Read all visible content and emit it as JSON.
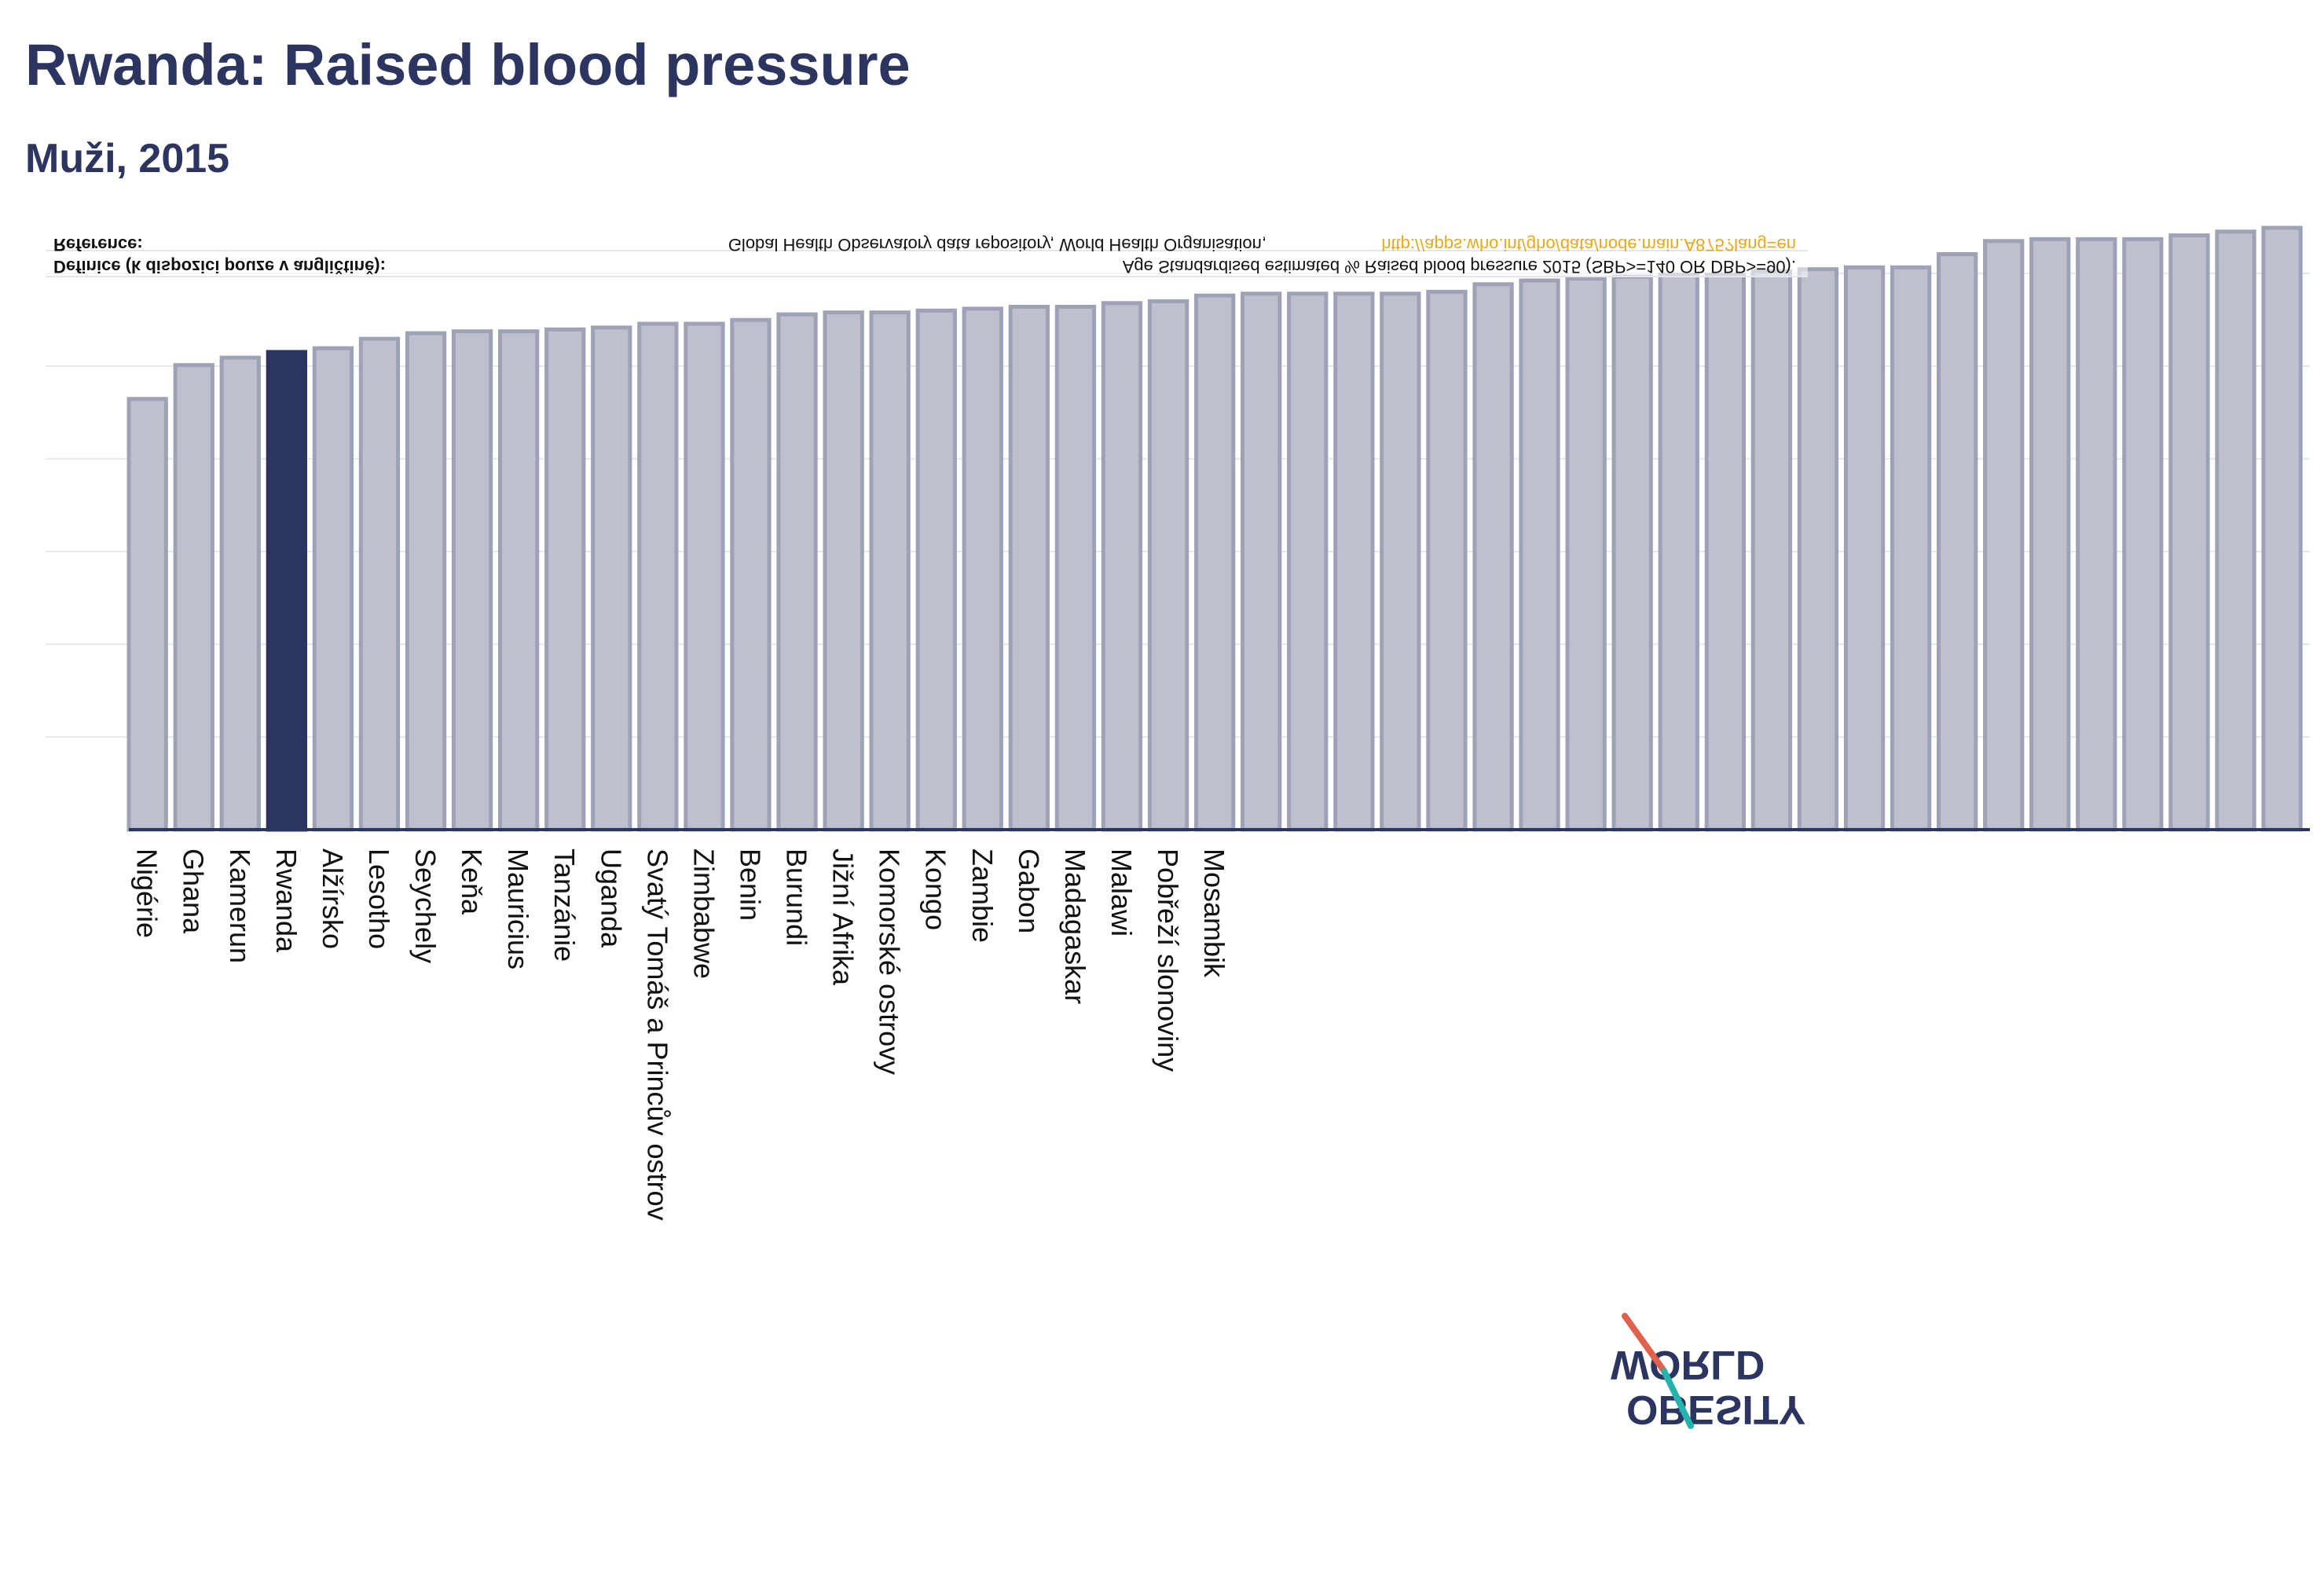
{
  "header": {
    "title": "Rwanda: Raised blood pressure",
    "subtitle": "Muži, 2015"
  },
  "notes": {
    "definition_label": "Definice (k dispozici pouze v angličtině):",
    "definition_text": "Age Standardised estimated % Raised blood pressure 2015 (SBP>=140 OR DBP>=90).",
    "reference_label": "Reference:",
    "reference_text": "Global Health Observatory data repository, World Health Organisation,",
    "reference_link": "http://apps.who.int/gho/data/node.main.A875?lang=en"
  },
  "logo": {
    "line1": "OBESITY",
    "line2": "WORLD"
  },
  "colors": {
    "highlight": "#2b3560",
    "bar": "#bec1cd",
    "bar_stroke": "#9da2b6",
    "link": "#e3a921",
    "axis": "#2b3560"
  },
  "chart_data": {
    "type": "bar",
    "categories": [
      "Nigérie",
      "Ghana",
      "Kamerun",
      "Rwanda",
      "Alžírsko",
      "Lesotho",
      "Seychely",
      "Keňa",
      "Mauricius",
      "Tanzánie",
      "Uganda",
      "Svatý Tomáš a Princův ostrov",
      "Zimbabwe",
      "Benin",
      "Burundi",
      "Jižní Afrika",
      "Komorské ostrovy",
      "Kongo",
      "Zambie",
      "Gabon",
      "Madagaskar",
      "Malawi",
      "Pobřeží slonoviny",
      "Mosambik",
      "",
      "",
      "",
      "",
      "",
      "",
      "",
      "",
      "",
      "",
      "",
      "",
      "",
      "",
      "",
      "",
      "",
      "",
      "",
      "",
      "",
      "",
      ""
    ],
    "values": [
      22.9,
      24.7,
      25.1,
      25.4,
      25.6,
      26.1,
      26.4,
      26.5,
      26.5,
      26.6,
      26.7,
      26.9,
      26.9,
      27.1,
      27.4,
      27.5,
      27.5,
      27.6,
      27.7,
      27.8,
      27.8,
      28.0,
      28.1,
      28.4,
      28.5,
      28.5,
      28.5,
      28.5,
      28.6,
      29.0,
      29.2,
      29.3,
      29.4,
      29.5,
      29.5,
      29.7,
      29.8,
      29.9,
      29.9,
      30.6,
      31.3,
      31.4,
      31.4,
      31.4,
      31.6,
      31.8,
      32.0
    ],
    "highlight": "Rwanda",
    "ylim": [
      0,
      32
    ],
    "xlabel": "",
    "ylabel": "",
    "grid": true,
    "legend": "none"
  }
}
